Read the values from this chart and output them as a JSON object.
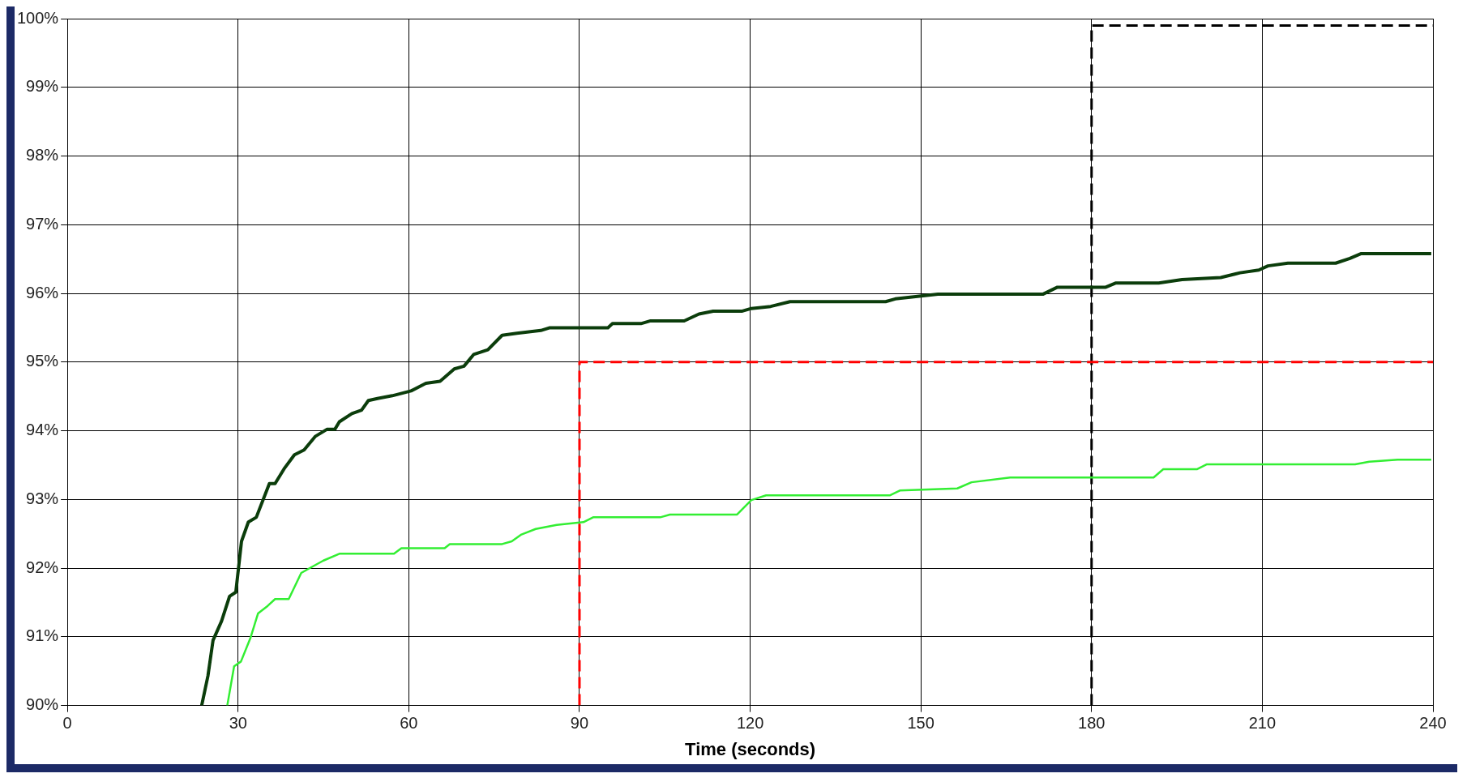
{
  "chart_data": {
    "type": "line",
    "xlabel": "Time (seconds)",
    "xlim": [
      0,
      240
    ],
    "xticks": [
      0,
      30,
      60,
      90,
      120,
      150,
      180,
      210,
      240
    ],
    "ylim": [
      90,
      100
    ],
    "yticks": [
      {
        "value": 90,
        "label": "90%"
      },
      {
        "value": 91,
        "label": "91%"
      },
      {
        "value": 92,
        "label": "92%"
      },
      {
        "value": 93,
        "label": "93%"
      },
      {
        "value": 94,
        "label": "94%"
      },
      {
        "value": 95,
        "label": "95%"
      },
      {
        "value": 96,
        "label": "96%"
      },
      {
        "value": 97,
        "label": "97%"
      },
      {
        "value": 98,
        "label": "98%"
      },
      {
        "value": 99,
        "label": "99%"
      },
      {
        "value": 100,
        "label": "100%"
      }
    ],
    "grid": true,
    "legend": false,
    "marker": "none",
    "series": [
      {
        "color": "#0b3d0b",
        "line_style": "solid",
        "x": [
          23.6,
          24.7,
          25.6,
          27.1,
          28.5,
          29.6,
          30.6,
          31.8,
          33.2,
          35.5,
          36.5,
          38.2,
          39.9,
          41.6,
          43.6,
          45.6,
          47,
          47.8,
          50,
          51.7,
          52.9,
          54.5,
          57.1,
          60.4,
          63,
          65.5,
          68,
          69.7,
          71.4,
          73.9,
          76.4,
          79,
          83.2,
          84.8,
          95,
          95.8,
          100.8,
          102.5,
          108.4,
          111,
          113.5,
          118.5,
          120.2,
          123.6,
          127,
          143.8,
          145.5,
          153,
          171.5,
          174,
          182.5,
          184.2,
          191.8,
          195.9,
          202.7,
          206.1,
          209.4,
          211,
          214.5,
          222.9,
          225.4,
          227.4,
          239.7
        ],
        "values": [
          90,
          90.43,
          90.95,
          91.23,
          91.59,
          91.65,
          92.39,
          92.67,
          92.74,
          93.23,
          93.23,
          93.46,
          93.65,
          93.72,
          93.92,
          94.02,
          94.02,
          94.13,
          94.25,
          94.3,
          94.44,
          94.47,
          94.51,
          94.58,
          94.69,
          94.72,
          94.9,
          94.94,
          95.11,
          95.18,
          95.39,
          95.42,
          95.46,
          95.5,
          95.5,
          95.56,
          95.56,
          95.6,
          95.6,
          95.7,
          95.74,
          95.74,
          95.78,
          95.81,
          95.88,
          95.88,
          95.92,
          95.99,
          95.99,
          96.09,
          96.09,
          96.15,
          96.15,
          96.2,
          96.23,
          96.3,
          96.34,
          96.4,
          96.44,
          96.44,
          96.51,
          96.58,
          96.58
        ]
      },
      {
        "color": "#33ee33",
        "line_style": "solid",
        "x": [
          28.1,
          29.3,
          30.5,
          32.2,
          33.5,
          35.2,
          36.5,
          38.9,
          41.1,
          42.8,
          45,
          47.8,
          57.4,
          58.7,
          66.3,
          67.2,
          76.4,
          78.1,
          79.8,
          82.3,
          86,
          90.7,
          92.4,
          104.2,
          105.9,
          117.7,
          120.2,
          122.8,
          144.6,
          146.3,
          156.4,
          158.9,
          165.7,
          190.9,
          192.6,
          198.5,
          200.2,
          226.3,
          228.8,
          233.8,
          239.7
        ],
        "values": [
          90,
          90.57,
          90.64,
          90.99,
          91.34,
          91.45,
          91.55,
          91.55,
          91.93,
          92.01,
          92.11,
          92.21,
          92.21,
          92.29,
          92.29,
          92.35,
          92.35,
          92.39,
          92.49,
          92.57,
          92.63,
          92.67,
          92.74,
          92.74,
          92.78,
          92.78,
          92.99,
          93.06,
          93.06,
          93.13,
          93.16,
          93.25,
          93.32,
          93.32,
          93.44,
          93.44,
          93.51,
          93.51,
          93.55,
          93.58,
          93.58
        ]
      },
      {
        "color": "#ff0000",
        "line_style": "dashed",
        "x": [
          90,
          90,
          240
        ],
        "values": [
          90,
          95,
          95
        ]
      },
      {
        "color": "#000000",
        "line_style": "dashed",
        "x": [
          180,
          180,
          240
        ],
        "values": [
          90,
          99.9,
          99.9
        ]
      }
    ]
  }
}
